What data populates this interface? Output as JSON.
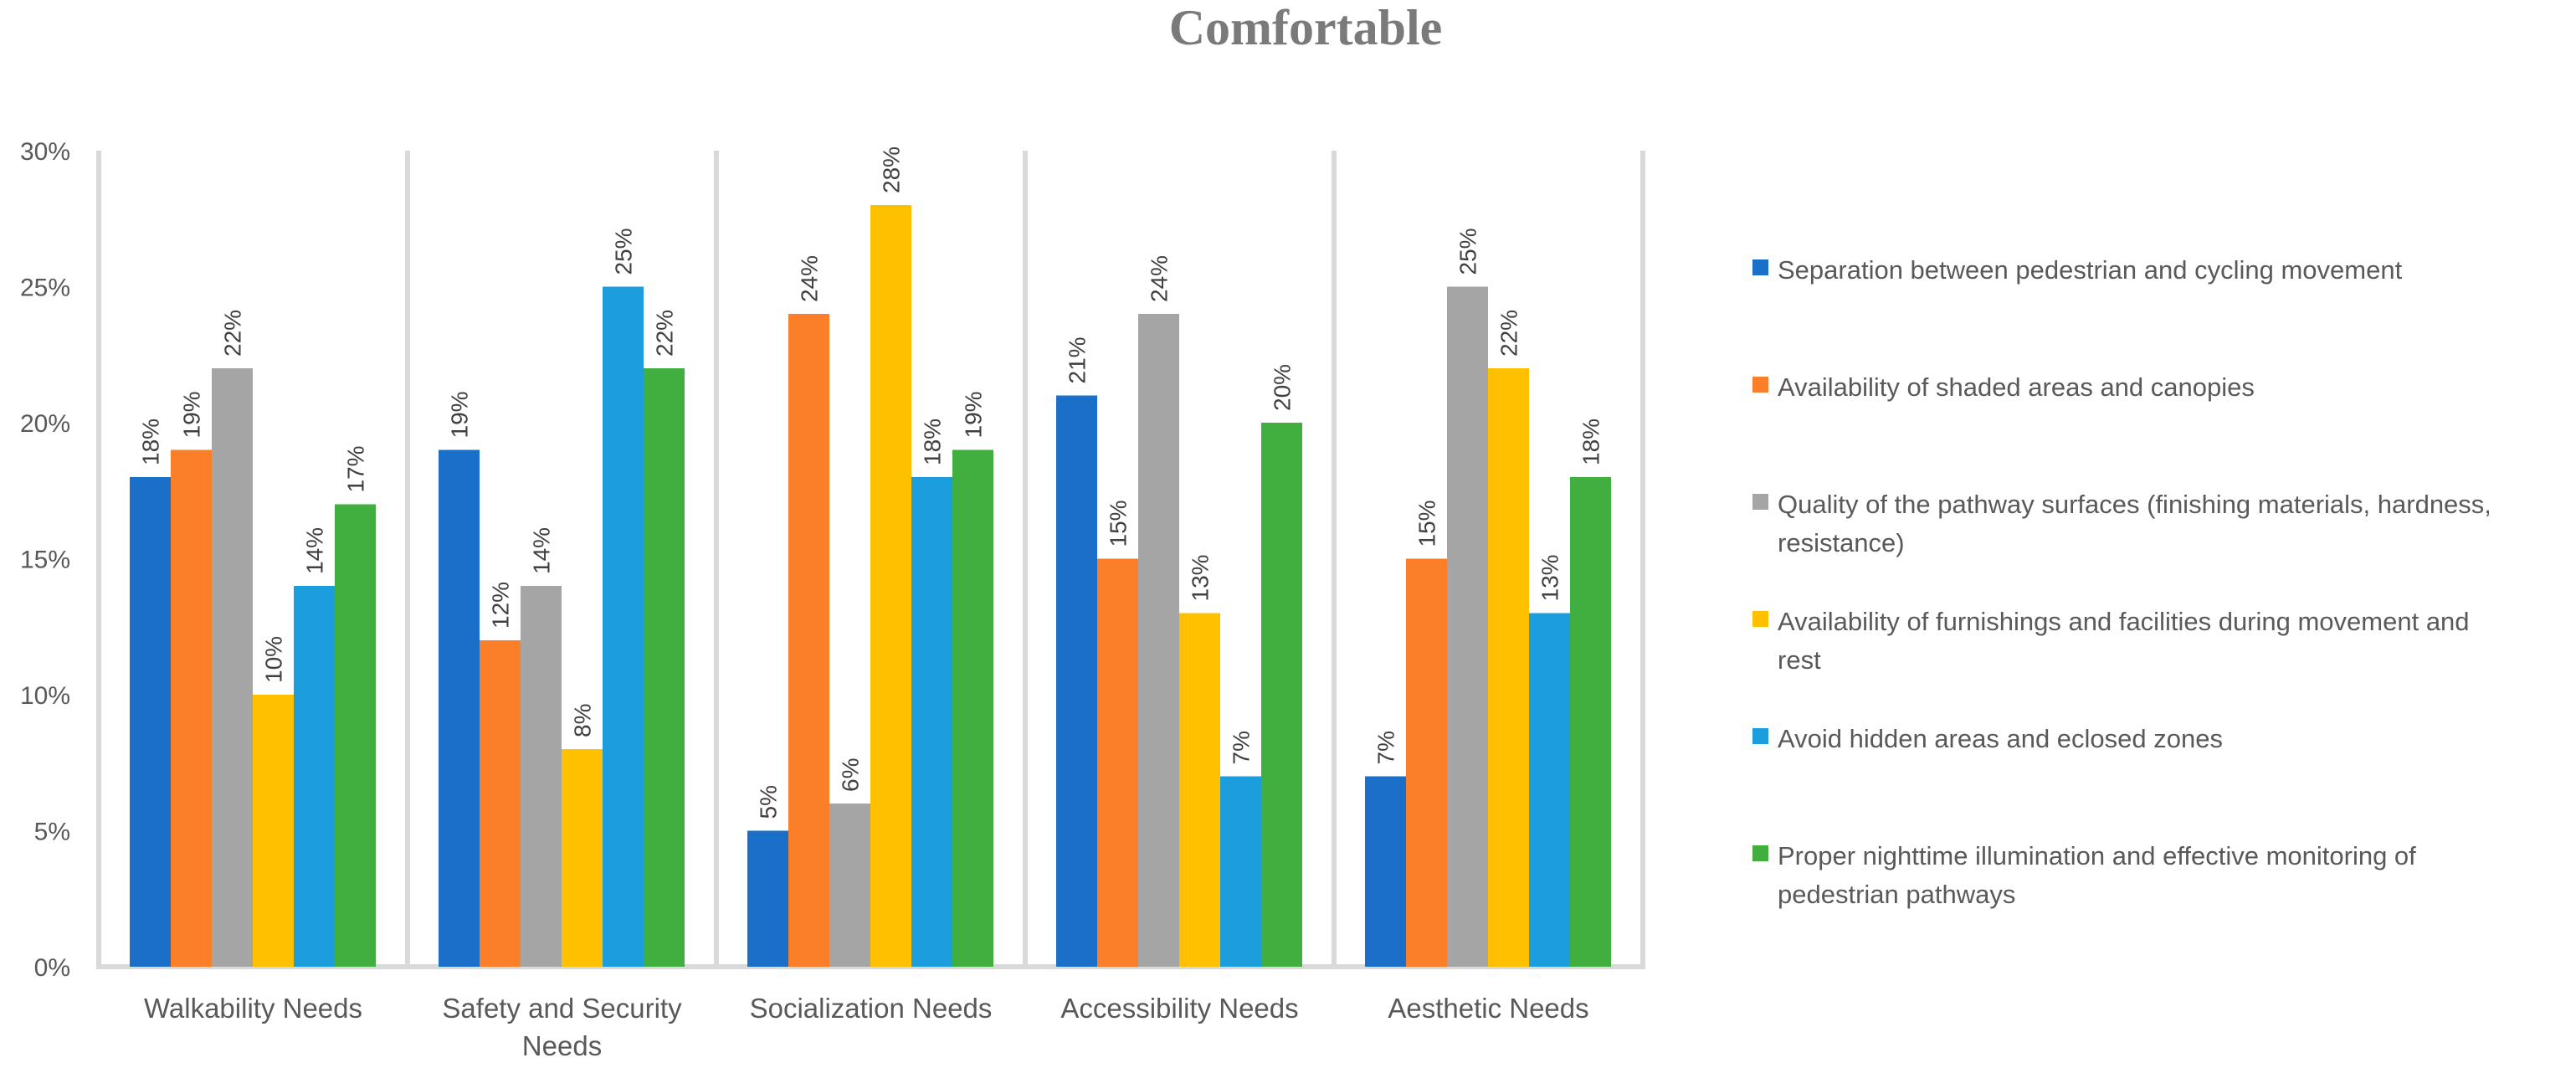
{
  "chart_data": {
    "type": "bar",
    "title": "Comfortable",
    "xlabel": "",
    "ylabel": "",
    "ylim": [
      0,
      30
    ],
    "yticks": [
      "0%",
      "5%",
      "10%",
      "15%",
      "20%",
      "25%",
      "30%"
    ],
    "ytick_values": [
      0,
      5,
      10,
      15,
      20,
      25,
      30
    ],
    "grid": false,
    "legend_position": "right",
    "categories": [
      [
        "Walkability Needs"
      ],
      [
        "Safety and Security",
        "Needs"
      ],
      [
        "Socialization Needs"
      ],
      [
        "Accessibility Needs"
      ],
      [
        "Aesthetic Needs"
      ]
    ],
    "series": [
      {
        "name": "Separation between pedestrian and cycling movement",
        "legend_lines": [
          "Separation between pedestrian and cycling movement"
        ],
        "color": "#1A70C8",
        "values": [
          18,
          19,
          5,
          21,
          7
        ]
      },
      {
        "name": "Availability of shaded areas and canopies",
        "legend_lines": [
          "Availability of shaded areas and canopies"
        ],
        "color": "#FB7E28",
        "values": [
          19,
          12,
          24,
          15,
          15
        ]
      },
      {
        "name": "Quality of the pathway surfaces (finishing materials, hardness, resistance)",
        "legend_lines": [
          "Quality of the pathway surfaces (finishing materials, hardness,",
          "resistance)"
        ],
        "color": "#A5A5A5",
        "values": [
          22,
          14,
          6,
          24,
          25
        ]
      },
      {
        "name": "Availability of furnishings and facilities during movement and rest",
        "legend_lines": [
          "Availability of furnishings and facilities during movement and",
          "rest"
        ],
        "color": "#FFC000",
        "values": [
          10,
          8,
          28,
          13,
          22
        ]
      },
      {
        "name": "Avoid hidden areas and eclosed zones",
        "legend_lines": [
          " Avoid hidden areas and eclosed zones"
        ],
        "color": "#1B9DDE",
        "values": [
          14,
          25,
          18,
          7,
          13
        ]
      },
      {
        "name": "Proper nighttime illumination and effective monitoring of pedestrian pathways",
        "legend_lines": [
          "Proper nighttime illumination and effective monitoring of",
          "pedestrian pathways"
        ],
        "color": "#41AF3F",
        "values": [
          17,
          22,
          19,
          20,
          18
        ]
      }
    ],
    "value_suffix": "%"
  }
}
